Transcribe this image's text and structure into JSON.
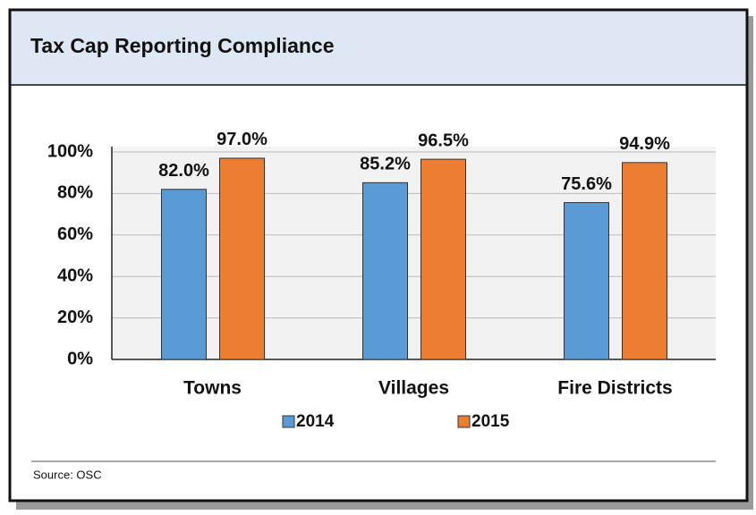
{
  "chart_data": {
    "type": "bar",
    "title": "Tax Cap Reporting Compliance",
    "categories": [
      "Towns",
      "Villages",
      "Fire Districts"
    ],
    "series": [
      {
        "name": "2014",
        "color": "#5b9bd5",
        "values": [
          82.0,
          85.2,
          75.6
        ],
        "value_labels": [
          "82.0%",
          "85.2%",
          "75.6%"
        ]
      },
      {
        "name": "2015",
        "color": "#ed7d31",
        "values": [
          97.0,
          96.5,
          94.9
        ],
        "value_labels": [
          "97.0%",
          "96.5%",
          "94.9%"
        ]
      }
    ],
    "ylim": [
      0,
      100
    ],
    "yticks": [
      {
        "value": 0,
        "label": "0%"
      },
      {
        "value": 20,
        "label": "20%"
      },
      {
        "value": 40,
        "label": "40%"
      },
      {
        "value": 60,
        "label": "60%"
      },
      {
        "value": 80,
        "label": "80%"
      },
      {
        "value": 100,
        "label": "100%"
      }
    ],
    "grid": true,
    "legend": "bottom",
    "source": "Source: OSC"
  }
}
